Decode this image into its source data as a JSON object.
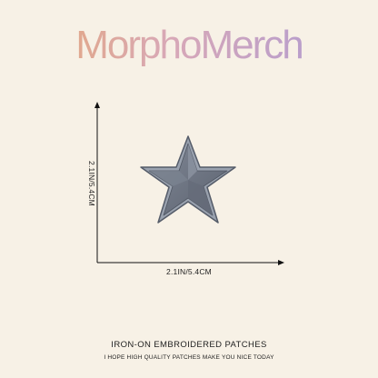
{
  "brand": {
    "name": "MorphoMerch"
  },
  "dimensions": {
    "width_label": "2.1IN/5.4CM",
    "height_label": "2.1IN/5.4CM"
  },
  "product": {
    "icon": "star-patch",
    "color": "#6f7683"
  },
  "caption": {
    "title": "IRON-ON EMBROIDERED PATCHES",
    "subtitle": "I HOPE HIGH QUALITY PATCHES MAKE YOU NICE TODAY"
  }
}
